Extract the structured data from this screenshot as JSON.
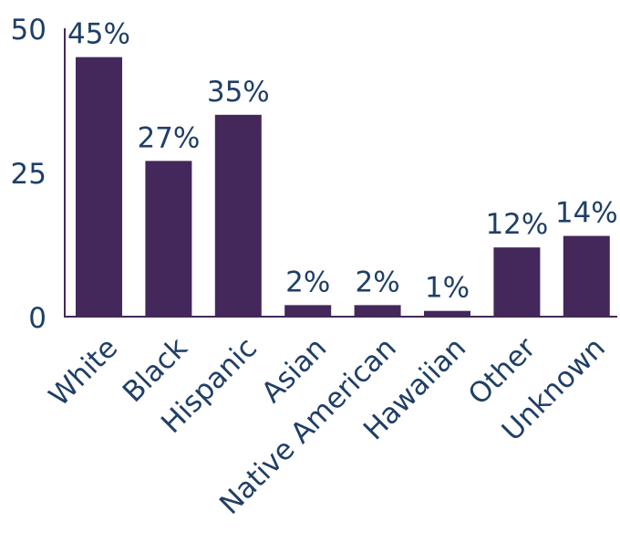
{
  "chart_data": {
    "type": "bar",
    "categories": [
      "White",
      "Black",
      "Hispanic",
      "Asian",
      "Native American",
      "Hawaiian",
      "Other",
      "Unknown"
    ],
    "values": [
      45,
      27,
      35,
      2,
      2,
      1,
      12,
      14
    ],
    "data_labels": [
      "45%",
      "27%",
      "35%",
      "2%",
      "2%",
      "1%",
      "12%",
      "14%"
    ],
    "yticks": [
      "0",
      "25",
      "50"
    ],
    "ytick_values": [
      0,
      25,
      50
    ],
    "ylim": [
      0,
      50
    ],
    "grid": false,
    "legend": "none",
    "title": "",
    "xlabel": "",
    "ylabel": ""
  },
  "colors": {
    "bar": "#44285b",
    "text": "#1f3f66",
    "axis": "#44285b"
  }
}
